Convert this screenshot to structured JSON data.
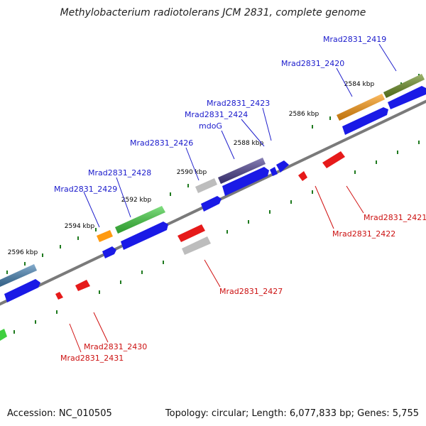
{
  "title": "Methylobacterium radiotolerans JCM 2831, complete genome",
  "footer": {
    "accession": "Accession: NC_010505",
    "summary": "Topology: circular; Length: 6,077,833 bp; Genes: 5,755"
  },
  "colors": {
    "backbone": "#7a7a7a",
    "tick": "#1f7a1f",
    "blue": "#1a1ae6",
    "red": "#e61a1a",
    "orange": "#ff9a10",
    "green": "#3fcf3f",
    "olive": "#6b8e23",
    "purple": "#4b3f8f",
    "steel": "#4682b4",
    "gray": "#bdbdbd"
  },
  "scale_labels": [
    "2584 kbp",
    "2586 kbp",
    "2588 kbp",
    "2590 kbp",
    "2592 kbp",
    "2594 kbp",
    "2596 kbp"
  ],
  "plus_labels": [
    "Mrad2831_2419",
    "Mrad2831_2420",
    "Mrad2831_2423",
    "Mrad2831_2424",
    "mdoG",
    "Mrad2831_2426",
    "Mrad2831_2428",
    "Mrad2831_2429"
  ],
  "minus_labels": [
    "Mrad2831_2421",
    "Mrad2831_2422",
    "Mrad2831_2427",
    "Mrad2831_2430",
    "Mrad2831_2431"
  ]
}
